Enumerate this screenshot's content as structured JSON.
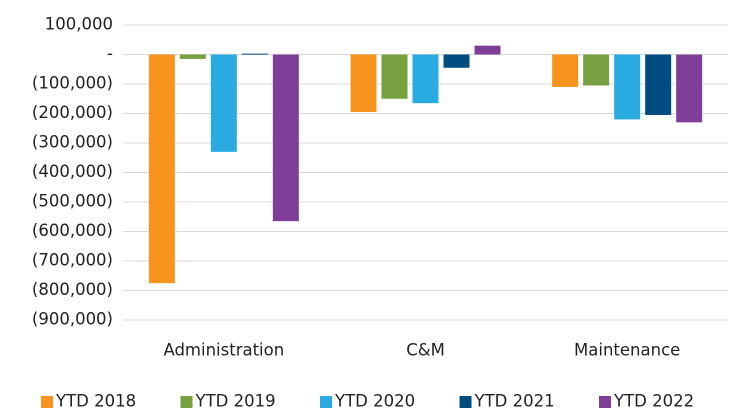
{
  "chart_data": {
    "type": "bar",
    "categories": [
      "Administration",
      "C&M",
      "Maintenance"
    ],
    "series": [
      {
        "name": "YTD 2018",
        "color": "#f7941d",
        "values": [
          -775000,
          -195000,
          -110000
        ]
      },
      {
        "name": "YTD 2019",
        "color": "#77a140",
        "values": [
          -15000,
          -150000,
          -105000
        ]
      },
      {
        "name": "YTD 2020",
        "color": "#29abe2",
        "values": [
          -330000,
          -165000,
          -220000
        ]
      },
      {
        "name": "YTD 2021",
        "color": "#004b80",
        "values": [
          3000,
          -45000,
          -205000
        ]
      },
      {
        "name": "YTD 2022",
        "color": "#7f3f98",
        "values": [
          -565000,
          30000,
          -230000
        ]
      }
    ],
    "ylim": [
      -900000,
      100000
    ],
    "yticks": [
      {
        "value": 100000,
        "label": "100,000"
      },
      {
        "value": 0,
        "label": "-"
      },
      {
        "value": -100000,
        "label": "(100,000)"
      },
      {
        "value": -200000,
        "label": "(200,000)"
      },
      {
        "value": -300000,
        "label": "(300,000)"
      },
      {
        "value": -400000,
        "label": "(400,000)"
      },
      {
        "value": -500000,
        "label": "(500,000)"
      },
      {
        "value": -600000,
        "label": "(600,000)"
      },
      {
        "value": -700000,
        "label": "(700,000)"
      },
      {
        "value": -800000,
        "label": "(800,000)"
      },
      {
        "value": -900000,
        "label": "(900,000)"
      }
    ],
    "grid": true,
    "legend": "bottom"
  }
}
